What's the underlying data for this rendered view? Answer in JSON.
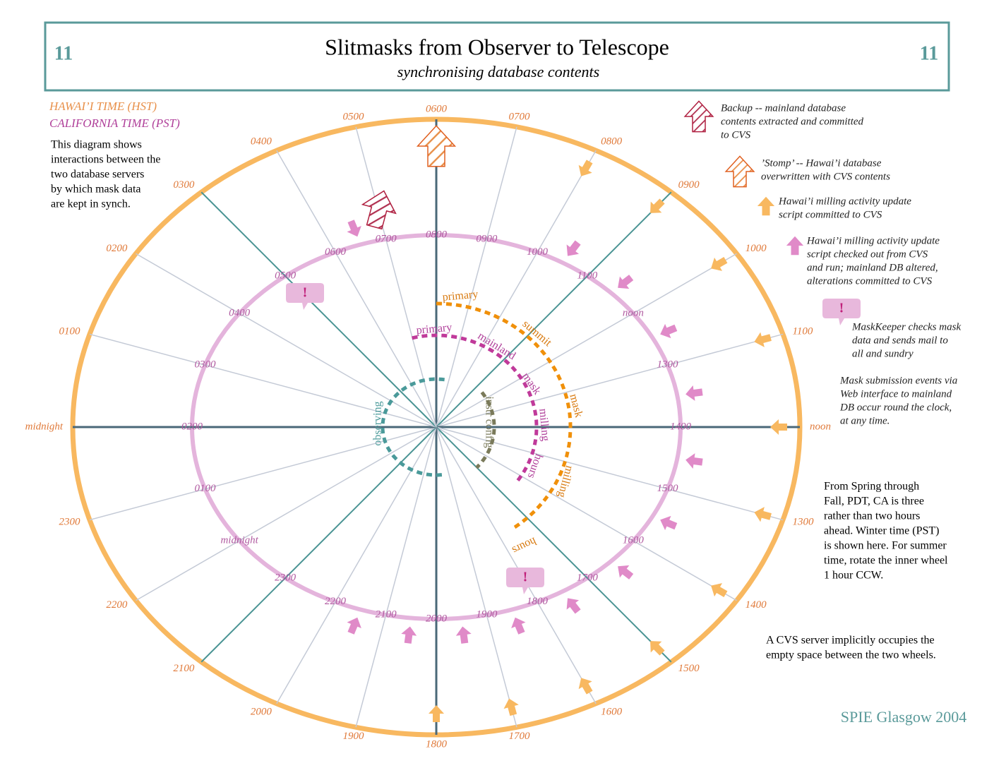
{
  "header": {
    "number_left": "11",
    "title": "Slitmasks from Observer to Telescope",
    "subtitle": "synchronising database contents",
    "number_right": "11"
  },
  "time_legend": {
    "hawaii": "HAWAI’I TIME (HST)",
    "california": "CALIFORNIA TIME (PST)"
  },
  "intro": [
    "This diagram shows",
    "interactions between the",
    "two database servers",
    "by which mask data",
    "are kept in synch."
  ],
  "legend": [
    {
      "lines": [
        "Backup -- mainland database",
        "contents extracted and committed",
        "to CVS"
      ]
    },
    {
      "lines": [
        "’Stomp’ -- Hawai’i database",
        "overwritten with CVS contents"
      ]
    },
    {
      "lines": [
        "Hawai’i milling activity  update",
        "script committed to CVS"
      ]
    },
    {
      "lines": [
        "Hawai’i milling activity update",
        "script checked out  from CVS",
        "and run; mainland DB altered,",
        "alterations committed to CVS"
      ]
    },
    {
      "lines": [
        "MaskKeeper checks mask",
        "data and sends mail to",
        "all and sundry"
      ]
    }
  ],
  "notes": {
    "submission": [
      "Mask submission events via",
      "Web interface to mainland",
      "DB occur round the clock,",
      "at any time."
    ],
    "daylight": [
      "From Spring through",
      "Fall, PDT, CA is three",
      "rather than two hours",
      "ahead.  Winter time  (PST)",
      "is shown here.  For summer",
      "time, rotate the inner wheel",
      "1 hour CCW."
    ],
    "cvs": [
      "A CVS server implicitly occupies the",
      "empty space between the two wheels."
    ]
  },
  "footer": "SPIE Glasgow 2004",
  "outer_wheel_labels": [
    "0600",
    "0700",
    "0800",
    "0900",
    "1000",
    "1100",
    "noon",
    "1300",
    "1400",
    "1500",
    "1600",
    "1700",
    "1800",
    "1900",
    "2000",
    "2100",
    "2200",
    "2300",
    "midnight",
    "0100",
    "0200",
    "0300",
    "0400",
    "0500"
  ],
  "inner_wheel_labels": [
    "0800",
    "0900",
    "1000",
    "1100",
    "noon",
    "1300",
    "1400",
    "1500",
    "1600",
    "1700",
    "1800",
    "1900",
    "2000",
    "2100",
    "2200",
    "2300",
    "midnight",
    "0100",
    "0200",
    "0300",
    "0400",
    "0500",
    "0600",
    "0700"
  ],
  "arc_labels": {
    "summit": [
      "primary",
      "summit",
      "mask",
      "milling",
      "hours"
    ],
    "mainland": [
      "primary",
      "mainland",
      "mask",
      "milling",
      "hours"
    ],
    "observing": "observing",
    "instr_config": "instr config"
  },
  "alert_mark": "!"
}
